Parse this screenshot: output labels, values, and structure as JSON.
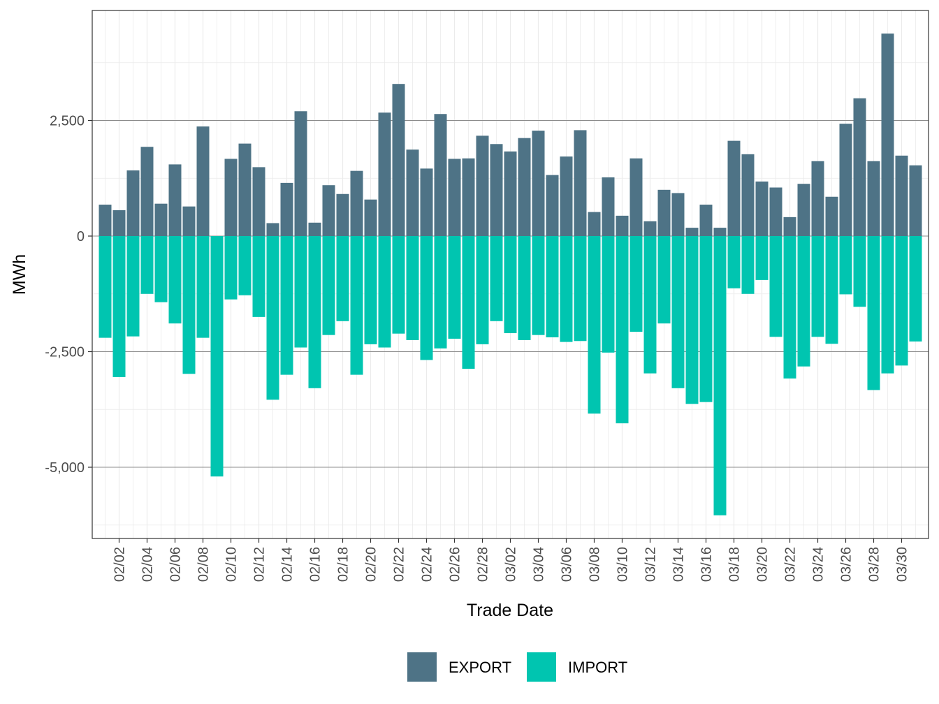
{
  "chart_data": {
    "type": "bar",
    "stacked": "diverging",
    "xlabel": "Trade Date",
    "ylabel": "MWh",
    "x_tick_labels": [
      "02/02",
      "02/04",
      "02/06",
      "02/08",
      "02/10",
      "02/12",
      "02/14",
      "02/16",
      "02/18",
      "02/20",
      "02/22",
      "02/24",
      "02/26",
      "02/28",
      "03/02",
      "03/04",
      "03/06",
      "03/08",
      "03/10",
      "03/12",
      "03/14",
      "03/16",
      "03/18",
      "03/20",
      "03/22",
      "03/24",
      "03/26",
      "03/28",
      "03/30"
    ],
    "y_tick_labels": [
      "2,500",
      "0",
      "-2,500",
      "-5,000"
    ],
    "y_ticks": [
      2500,
      0,
      -2500,
      -5000
    ],
    "ylim": [
      -6450,
      5000
    ],
    "grid": true,
    "legend_position": "bottom",
    "categories": [
      "02/01",
      "02/02",
      "02/03",
      "02/04",
      "02/05",
      "02/06",
      "02/07",
      "02/08",
      "02/09",
      "02/10",
      "02/11",
      "02/12",
      "02/13",
      "02/14",
      "02/15",
      "02/16",
      "02/17",
      "02/18",
      "02/19",
      "02/20",
      "02/21",
      "02/22",
      "02/23",
      "02/24",
      "02/25",
      "02/26",
      "02/27",
      "02/28",
      "03/01",
      "03/02",
      "03/03",
      "03/04",
      "03/05",
      "03/06",
      "03/07",
      "03/08",
      "03/09",
      "03/10",
      "03/11",
      "03/12",
      "03/13",
      "03/14",
      "03/15",
      "03/16",
      "03/17",
      "03/18",
      "03/19",
      "03/20",
      "03/21",
      "03/22",
      "03/23",
      "03/24",
      "03/25",
      "03/26",
      "03/27",
      "03/28",
      "03/29",
      "03/30",
      "03/31"
    ],
    "series": [
      {
        "name": "EXPORT",
        "color": "#4e7386",
        "values": [
          680,
          560,
          1420,
          1930,
          700,
          1550,
          640,
          2370,
          0,
          1670,
          2000,
          1490,
          280,
          1150,
          2700,
          290,
          1100,
          910,
          1410,
          790,
          2670,
          3290,
          1870,
          1460,
          2640,
          1670,
          1680,
          2170,
          1990,
          1830,
          2120,
          2280,
          1320,
          1720,
          2290,
          520,
          1270,
          440,
          1680,
          320,
          1000,
          930,
          180,
          680,
          180,
          2060,
          1770,
          1180,
          1050,
          410,
          1130,
          1620,
          850,
          2430,
          2980,
          1620,
          4380,
          1740,
          1530
        ]
      },
      {
        "name": "IMPORT",
        "color": "#00c5b0",
        "values": [
          -2200,
          -3050,
          -2170,
          -1250,
          -1430,
          -1890,
          -2980,
          -2200,
          -5200,
          -1370,
          -1280,
          -1750,
          -3540,
          -3000,
          -2410,
          -3290,
          -2140,
          -1840,
          -3000,
          -2340,
          -2410,
          -2110,
          -2250,
          -2680,
          -2430,
          -2220,
          -2870,
          -2340,
          -1840,
          -2100,
          -2250,
          -2140,
          -2190,
          -2290,
          -2270,
          -3840,
          -2520,
          -4050,
          -2070,
          -2970,
          -1890,
          -3290,
          -3630,
          -3590,
          -6040,
          -1130,
          -1250,
          -950,
          -2180,
          -3080,
          -2820,
          -2180,
          -2330,
          -1260,
          -1530,
          -3330,
          -2970,
          -2800,
          -2280
        ]
      }
    ]
  }
}
